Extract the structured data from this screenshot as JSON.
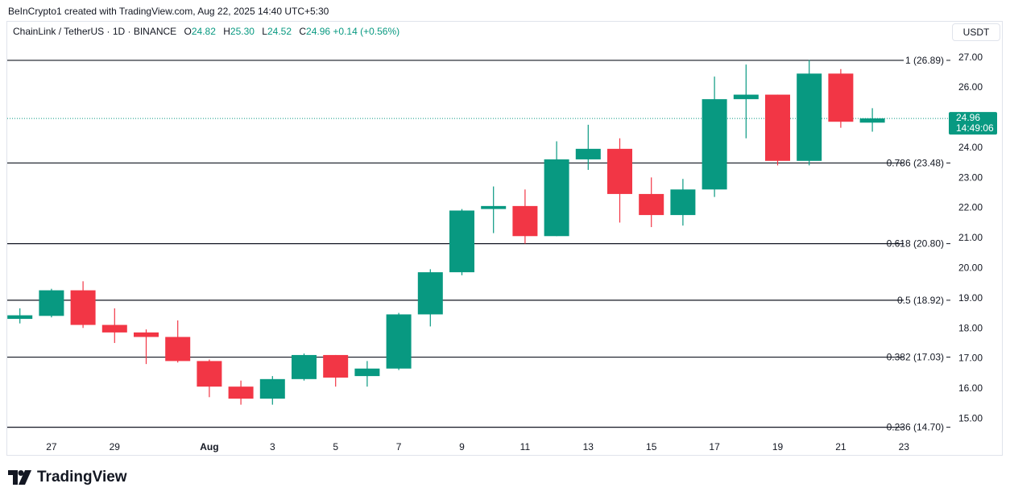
{
  "header": {
    "credit": "BeInCrypto1 created with TradingView.com, Aug 22, 2025 14:40 UTC+5:30"
  },
  "legend": {
    "symbol": "ChainLink / TetherUS · 1D · BINANCE",
    "o_key": "O",
    "o_val": "24.82",
    "h_key": "H",
    "h_val": "25.30",
    "l_key": "L",
    "l_val": "24.52",
    "c_key": "C",
    "c_val": "24.96",
    "change": "+0.14 (+0.56%)"
  },
  "currency_button": "USDT",
  "price_tag": {
    "price": "24.96",
    "countdown": "14:49:06"
  },
  "brand": {
    "name": "TradingView"
  },
  "colors": {
    "up": "#089981",
    "down": "#f23645",
    "axis_text": "#131722"
  },
  "chart_data": {
    "type": "candlestick",
    "ylim": [
      14.45,
      27.45
    ],
    "y_ticks": [
      "15.00",
      "16.00",
      "17.00",
      "18.00",
      "19.00",
      "20.00",
      "21.00",
      "22.00",
      "23.00",
      "24.00",
      "25.00",
      "26.00",
      "27.00"
    ],
    "x_ticks": [
      {
        "label": "27",
        "index": 1
      },
      {
        "label": "29",
        "index": 3
      },
      {
        "label": "Aug",
        "index": 6
      },
      {
        "label": "3",
        "index": 8
      },
      {
        "label": "5",
        "index": 10
      },
      {
        "label": "7",
        "index": 12
      },
      {
        "label": "9",
        "index": 14
      },
      {
        "label": "11",
        "index": 16
      },
      {
        "label": "13",
        "index": 18
      },
      {
        "label": "15",
        "index": 20
      },
      {
        "label": "17",
        "index": 22
      },
      {
        "label": "19",
        "index": 24
      },
      {
        "label": "21",
        "index": 26
      },
      {
        "label": "23",
        "index": 28
      }
    ],
    "candles": [
      {
        "o": 18.3,
        "h": 18.65,
        "l": 18.15,
        "c": 18.42
      },
      {
        "o": 18.4,
        "h": 19.3,
        "l": 18.35,
        "c": 19.25
      },
      {
        "o": 19.25,
        "h": 19.55,
        "l": 18.0,
        "c": 18.1
      },
      {
        "o": 18.1,
        "h": 18.65,
        "l": 17.5,
        "c": 17.85
      },
      {
        "o": 17.85,
        "h": 17.95,
        "l": 16.8,
        "c": 17.7
      },
      {
        "o": 17.7,
        "h": 18.25,
        "l": 16.85,
        "c": 16.9
      },
      {
        "o": 16.9,
        "h": 16.95,
        "l": 15.7,
        "c": 16.05
      },
      {
        "o": 16.05,
        "h": 16.25,
        "l": 15.45,
        "c": 15.65
      },
      {
        "o": 15.65,
        "h": 16.4,
        "l": 15.45,
        "c": 16.3
      },
      {
        "o": 16.3,
        "h": 17.15,
        "l": 16.25,
        "c": 17.1
      },
      {
        "o": 17.1,
        "h": 17.1,
        "l": 16.05,
        "c": 16.35
      },
      {
        "o": 16.4,
        "h": 16.9,
        "l": 16.05,
        "c": 16.65
      },
      {
        "o": 16.65,
        "h": 18.5,
        "l": 16.6,
        "c": 18.45
      },
      {
        "o": 18.45,
        "h": 19.95,
        "l": 18.05,
        "c": 19.85
      },
      {
        "o": 19.85,
        "h": 21.95,
        "l": 19.75,
        "c": 21.9
      },
      {
        "o": 21.95,
        "h": 22.7,
        "l": 21.15,
        "c": 22.05
      },
      {
        "o": 22.05,
        "h": 22.6,
        "l": 20.8,
        "c": 21.05
      },
      {
        "o": 21.05,
        "h": 24.2,
        "l": 21.05,
        "c": 23.6
      },
      {
        "o": 23.6,
        "h": 24.75,
        "l": 23.25,
        "c": 23.95
      },
      {
        "o": 23.95,
        "h": 24.3,
        "l": 21.5,
        "c": 22.45
      },
      {
        "o": 22.45,
        "h": 23.0,
        "l": 21.35,
        "c": 21.75
      },
      {
        "o": 21.75,
        "h": 22.95,
        "l": 21.4,
        "c": 22.6
      },
      {
        "o": 22.6,
        "h": 26.35,
        "l": 22.35,
        "c": 25.6
      },
      {
        "o": 25.6,
        "h": 26.75,
        "l": 24.3,
        "c": 25.75
      },
      {
        "o": 25.75,
        "h": 25.75,
        "l": 23.4,
        "c": 23.55
      },
      {
        "o": 23.55,
        "h": 26.9,
        "l": 23.4,
        "c": 26.45
      },
      {
        "o": 26.45,
        "h": 26.6,
        "l": 24.65,
        "c": 24.85
      },
      {
        "o": 24.82,
        "h": 25.3,
        "l": 24.52,
        "c": 24.96
      }
    ],
    "fib_levels": [
      {
        "label": "1 (26.89)",
        "value": 26.89
      },
      {
        "label": "0.786 (23.48)",
        "value": 23.48
      },
      {
        "label": "0.618 (20.80)",
        "value": 20.8
      },
      {
        "label": "0.5 (18.92)",
        "value": 18.92
      },
      {
        "label": "0.382 (17.03)",
        "value": 17.03
      },
      {
        "label": "0.236 (14.70)",
        "value": 14.7
      }
    ],
    "last_price": 24.96
  }
}
